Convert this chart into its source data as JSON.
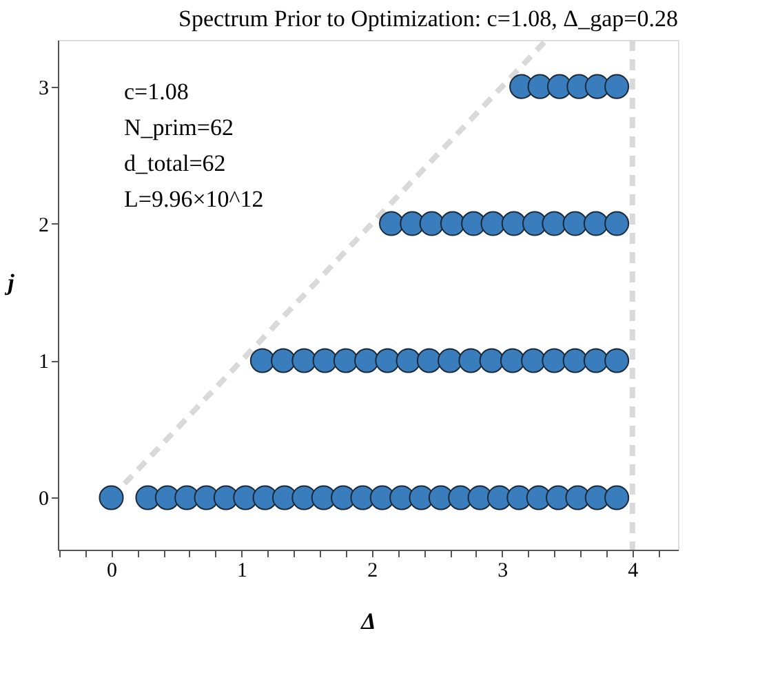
{
  "chart_data": {
    "type": "scatter",
    "title": "Spectrum Prior to Optimization: c=1.08, Δ_gap=0.28",
    "xlabel": "Δ",
    "ylabel": "j",
    "xlim": [
      -0.41,
      4.35
    ],
    "ylim": [
      -0.38,
      3.34
    ],
    "xticks": [
      {
        "value": -0.4,
        "label": null
      },
      {
        "value": -0.2,
        "label": null
      },
      0,
      {
        "value": 0.2,
        "label": null
      },
      {
        "value": 0.4,
        "label": null
      },
      {
        "value": 0.6,
        "label": null
      },
      {
        "value": 0.8,
        "label": null
      },
      1,
      {
        "value": 1.2,
        "label": null
      },
      {
        "value": 1.4,
        "label": null
      },
      {
        "value": 1.6,
        "label": null
      },
      {
        "value": 1.8,
        "label": null
      },
      2,
      {
        "value": 2.2,
        "label": null
      },
      {
        "value": 2.4,
        "label": null
      },
      {
        "value": 2.6,
        "label": null
      },
      {
        "value": 2.8,
        "label": null
      },
      3,
      {
        "value": 3.2,
        "label": null
      },
      {
        "value": 3.4,
        "label": null
      },
      {
        "value": 3.6,
        "label": null
      },
      {
        "value": 3.8,
        "label": null
      },
      4,
      {
        "value": 4.2,
        "label": null
      }
    ],
    "yticks": [
      0,
      1,
      2,
      3
    ],
    "grid": false,
    "marker": "circle",
    "series": [
      {
        "type": "line",
        "color": "#d9d9d9",
        "line_style": "dashed",
        "marker": "none",
        "x": [
          0,
          3.34
        ],
        "values": [
          0,
          3.34
        ]
      },
      {
        "color": "#3a7dbd",
        "x": [
          0,
          0.28,
          0.43,
          0.58,
          0.73,
          0.88,
          1.03,
          1.18,
          1.33,
          1.48,
          1.63,
          1.78,
          1.93,
          2.08,
          2.23,
          2.38,
          2.53,
          2.68,
          2.83,
          2.98,
          3.13,
          3.28,
          3.43,
          3.58,
          3.73,
          3.88,
          1.16,
          1.32,
          1.48,
          1.64,
          1.8,
          1.96,
          2.12,
          2.28,
          2.44,
          2.6,
          2.76,
          2.92,
          3.08,
          3.24,
          3.4,
          3.56,
          3.72,
          3.88,
          2.15,
          2.31,
          2.46,
          2.62,
          2.78,
          2.93,
          3.09,
          3.25,
          3.4,
          3.56,
          3.72,
          3.88,
          3.15,
          3.29,
          3.44,
          3.59,
          3.73,
          3.88
        ],
        "values": [
          0,
          0,
          0,
          0,
          0,
          0,
          0,
          0,
          0,
          0,
          0,
          0,
          0,
          0,
          0,
          0,
          0,
          0,
          0,
          0,
          0,
          0,
          0,
          0,
          0,
          0,
          1,
          1,
          1,
          1,
          1,
          1,
          1,
          1,
          1,
          1,
          1,
          1,
          1,
          1,
          1,
          1,
          1,
          1,
          2,
          2,
          2,
          2,
          2,
          2,
          2,
          2,
          2,
          2,
          2,
          2,
          3,
          3,
          3,
          3,
          3,
          3
        ]
      }
    ],
    "ref_lines": [
      {
        "axis": "x",
        "value": 4,
        "color": "#d9d9d9",
        "line_style": "dashed",
        "label": null
      }
    ],
    "annotations": [
      "c=1.08",
      "N_prim=62",
      "d_total=62",
      "L=9.96×10^12"
    ]
  }
}
